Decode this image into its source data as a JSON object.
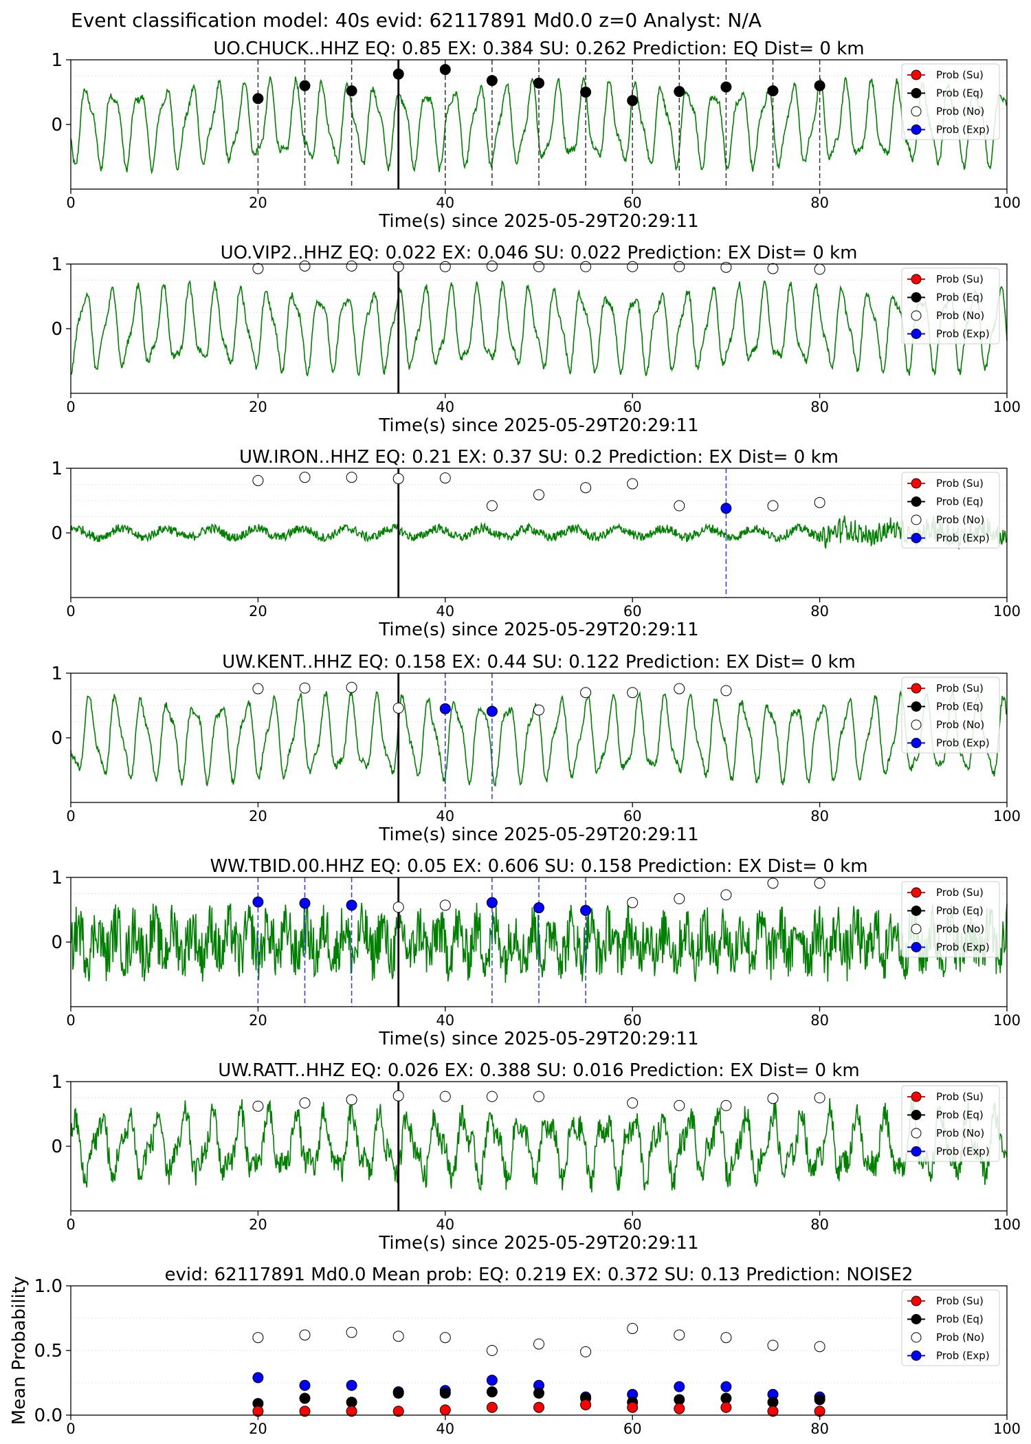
{
  "suptitle": "Event classification model: 40s evid: 62117891 Md0.0 z=0 Analyst: N/A",
  "colors": {
    "trace": "#008000",
    "su": "#ff0000",
    "eq": "#000000",
    "no": "#ffffff",
    "exp": "#0000ff",
    "grid": "#dddddd"
  },
  "legend": [
    "Prob (Su)",
    "Prob (Eq)",
    "Prob (No)",
    "Prob (Exp)"
  ],
  "chart_data": [
    {
      "type": "line",
      "title": "UO.CHUCK..HHZ   EQ: 0.85  EX: 0.384  SU: 0.262   Prediction: EQ    Dist= 0 km",
      "xlabel": "Time(s) since 2025-05-29T20:29:11",
      "xlim": [
        0,
        100
      ],
      "ylim": [
        -1,
        1
      ],
      "xticks": [
        "0",
        "20",
        "40",
        "60",
        "80",
        "100"
      ],
      "yticks": [
        "1",
        "0"
      ],
      "noise": "low",
      "marker_line": 35,
      "dashed_lines": {
        "color": "black",
        "x": [
          20,
          25,
          30,
          40,
          45,
          50,
          55,
          60,
          65,
          70,
          75,
          80
        ]
      },
      "points": [
        {
          "x": 20,
          "y": 0.4,
          "cls": "eq"
        },
        {
          "x": 25,
          "y": 0.6,
          "cls": "eq"
        },
        {
          "x": 30,
          "y": 0.52,
          "cls": "eq"
        },
        {
          "x": 35,
          "y": 0.78,
          "cls": "eq"
        },
        {
          "x": 40,
          "y": 0.85,
          "cls": "eq"
        },
        {
          "x": 45,
          "y": 0.68,
          "cls": "eq"
        },
        {
          "x": 50,
          "y": 0.64,
          "cls": "eq"
        },
        {
          "x": 55,
          "y": 0.5,
          "cls": "eq"
        },
        {
          "x": 60,
          "y": 0.37,
          "cls": "eq"
        },
        {
          "x": 65,
          "y": 0.51,
          "cls": "eq"
        },
        {
          "x": 70,
          "y": 0.58,
          "cls": "eq"
        },
        {
          "x": 75,
          "y": 0.52,
          "cls": "eq"
        },
        {
          "x": 80,
          "y": 0.6,
          "cls": "eq"
        }
      ]
    },
    {
      "type": "line",
      "title": "UO.VIP2..HHZ   EQ: 0.022  EX: 0.046  SU: 0.022   Prediction: EX    Dist= 0 km",
      "xlabel": "Time(s) since 2025-05-29T20:29:11",
      "xlim": [
        0,
        100
      ],
      "ylim": [
        -1,
        1
      ],
      "xticks": [
        "0",
        "20",
        "40",
        "60",
        "80",
        "100"
      ],
      "yticks": [
        "1",
        "0"
      ],
      "noise": "low",
      "marker_line": 35,
      "dashed_lines": {
        "color": "blue",
        "x": []
      },
      "points": [
        {
          "x": 20,
          "y": 0.93,
          "cls": "no"
        },
        {
          "x": 25,
          "y": 0.97,
          "cls": "no"
        },
        {
          "x": 30,
          "y": 0.97,
          "cls": "no"
        },
        {
          "x": 35,
          "y": 0.96,
          "cls": "no"
        },
        {
          "x": 40,
          "y": 0.96,
          "cls": "no"
        },
        {
          "x": 45,
          "y": 0.97,
          "cls": "no"
        },
        {
          "x": 50,
          "y": 0.96,
          "cls": "no"
        },
        {
          "x": 55,
          "y": 0.96,
          "cls": "no"
        },
        {
          "x": 60,
          "y": 0.96,
          "cls": "no"
        },
        {
          "x": 65,
          "y": 0.96,
          "cls": "no"
        },
        {
          "x": 70,
          "y": 0.95,
          "cls": "no"
        },
        {
          "x": 75,
          "y": 0.93,
          "cls": "no"
        },
        {
          "x": 80,
          "y": 0.92,
          "cls": "no"
        }
      ]
    },
    {
      "type": "line",
      "title": "UW.IRON..HHZ   EQ: 0.21  EX: 0.37  SU: 0.2   Prediction: EX    Dist= 0 km",
      "xlabel": "Time(s) since 2025-05-29T20:29:11",
      "xlim": [
        0,
        100
      ],
      "ylim": [
        -1,
        1
      ],
      "xticks": [
        "0",
        "20",
        "40",
        "60",
        "80",
        "100"
      ],
      "yticks": [
        "1",
        "0"
      ],
      "noise": "flat",
      "marker_line": 35,
      "dashed_lines": {
        "color": "blue",
        "x": [
          70
        ]
      },
      "points": [
        {
          "x": 20,
          "y": 0.81,
          "cls": "no"
        },
        {
          "x": 25,
          "y": 0.86,
          "cls": "no"
        },
        {
          "x": 30,
          "y": 0.86,
          "cls": "no"
        },
        {
          "x": 35,
          "y": 0.84,
          "cls": "no"
        },
        {
          "x": 40,
          "y": 0.85,
          "cls": "no"
        },
        {
          "x": 45,
          "y": 0.42,
          "cls": "no"
        },
        {
          "x": 50,
          "y": 0.59,
          "cls": "no"
        },
        {
          "x": 55,
          "y": 0.7,
          "cls": "no"
        },
        {
          "x": 60,
          "y": 0.76,
          "cls": "no"
        },
        {
          "x": 65,
          "y": 0.42,
          "cls": "no"
        },
        {
          "x": 70,
          "y": 0.38,
          "cls": "exp"
        },
        {
          "x": 75,
          "y": 0.42,
          "cls": "no"
        },
        {
          "x": 80,
          "y": 0.47,
          "cls": "no"
        }
      ]
    },
    {
      "type": "line",
      "title": "UW.KENT..HHZ   EQ: 0.158  EX: 0.44  SU: 0.122   Prediction: EX    Dist= 0 km",
      "xlabel": "Time(s) since 2025-05-29T20:29:11",
      "xlim": [
        0,
        100
      ],
      "ylim": [
        -1,
        1
      ],
      "xticks": [
        "0",
        "20",
        "40",
        "60",
        "80",
        "100"
      ],
      "yticks": [
        "1",
        "0"
      ],
      "noise": "low",
      "marker_line": 35,
      "dashed_lines": {
        "color": "blue",
        "x": [
          40,
          45
        ]
      },
      "points": [
        {
          "x": 20,
          "y": 0.76,
          "cls": "no"
        },
        {
          "x": 25,
          "y": 0.77,
          "cls": "no"
        },
        {
          "x": 30,
          "y": 0.78,
          "cls": "no"
        },
        {
          "x": 35,
          "y": 0.46,
          "cls": "no"
        },
        {
          "x": 40,
          "y": 0.45,
          "cls": "exp"
        },
        {
          "x": 45,
          "y": 0.41,
          "cls": "exp"
        },
        {
          "x": 50,
          "y": 0.43,
          "cls": "no"
        },
        {
          "x": 55,
          "y": 0.7,
          "cls": "no"
        },
        {
          "x": 60,
          "y": 0.7,
          "cls": "no"
        },
        {
          "x": 65,
          "y": 0.76,
          "cls": "no"
        },
        {
          "x": 70,
          "y": 0.73,
          "cls": "no"
        }
      ]
    },
    {
      "type": "line",
      "title": "WW.TBID.00.HHZ   EQ: 0.05  EX: 0.606  SU: 0.158   Prediction: EX    Dist= 0 km",
      "xlabel": "Time(s) since 2025-05-29T20:29:11",
      "xlim": [
        0,
        100
      ],
      "ylim": [
        -1,
        1
      ],
      "xticks": [
        "0",
        "20",
        "40",
        "60",
        "80",
        "100"
      ],
      "yticks": [
        "1",
        "0"
      ],
      "noise": "high",
      "marker_line": 35,
      "dashed_lines": {
        "color": "blue",
        "x": [
          20,
          25,
          30,
          45,
          50,
          55
        ]
      },
      "points": [
        {
          "x": 20,
          "y": 0.62,
          "cls": "exp"
        },
        {
          "x": 25,
          "y": 0.6,
          "cls": "exp"
        },
        {
          "x": 30,
          "y": 0.57,
          "cls": "exp"
        },
        {
          "x": 35,
          "y": 0.54,
          "cls": "no"
        },
        {
          "x": 40,
          "y": 0.57,
          "cls": "no"
        },
        {
          "x": 45,
          "y": 0.61,
          "cls": "exp"
        },
        {
          "x": 50,
          "y": 0.53,
          "cls": "exp"
        },
        {
          "x": 55,
          "y": 0.49,
          "cls": "exp"
        },
        {
          "x": 60,
          "y": 0.61,
          "cls": "no"
        },
        {
          "x": 65,
          "y": 0.67,
          "cls": "no"
        },
        {
          "x": 70,
          "y": 0.73,
          "cls": "no"
        },
        {
          "x": 75,
          "y": 0.91,
          "cls": "no"
        },
        {
          "x": 80,
          "y": 0.91,
          "cls": "no"
        }
      ]
    },
    {
      "type": "line",
      "title": "UW.RATT..HHZ   EQ: 0.026  EX: 0.388  SU: 0.016   Prediction: EX    Dist= 0 km",
      "xlabel": "Time(s) since 2025-05-29T20:29:11",
      "xlim": [
        0,
        100
      ],
      "ylim": [
        -1,
        1
      ],
      "xticks": [
        "0",
        "20",
        "40",
        "60",
        "80",
        "100"
      ],
      "yticks": [
        "1",
        "0"
      ],
      "noise": "mid",
      "marker_line": 35,
      "dashed_lines": {
        "color": "blue",
        "x": []
      },
      "points": [
        {
          "x": 20,
          "y": 0.62,
          "cls": "no"
        },
        {
          "x": 25,
          "y": 0.67,
          "cls": "no"
        },
        {
          "x": 30,
          "y": 0.72,
          "cls": "no"
        },
        {
          "x": 35,
          "y": 0.78,
          "cls": "no"
        },
        {
          "x": 40,
          "y": 0.77,
          "cls": "no"
        },
        {
          "x": 45,
          "y": 0.77,
          "cls": "no"
        },
        {
          "x": 50,
          "y": 0.77,
          "cls": "no"
        },
        {
          "x": 60,
          "y": 0.67,
          "cls": "no"
        },
        {
          "x": 65,
          "y": 0.63,
          "cls": "no"
        },
        {
          "x": 70,
          "y": 0.63,
          "cls": "no"
        },
        {
          "x": 75,
          "y": 0.74,
          "cls": "no"
        },
        {
          "x": 80,
          "y": 0.75,
          "cls": "no"
        }
      ]
    },
    {
      "type": "scatter",
      "title": "evid: 62117891  Md0.0   Mean prob:   EQ: 0.219  EX: 0.372  SU: 0.13   Prediction: NOISE2",
      "xlabel": "",
      "ylabel": "Mean Probability",
      "xlim": [
        0,
        100
      ],
      "ylim": [
        0,
        1
      ],
      "xticks": [
        "0",
        "20",
        "40",
        "60",
        "80",
        "100"
      ],
      "yticks": [
        "1.0",
        "0.5",
        "0.0"
      ],
      "series": [
        {
          "name": "Prob (No)",
          "cls": "no",
          "x": [
            20,
            25,
            30,
            35,
            40,
            45,
            50,
            55,
            60,
            65,
            70,
            75,
            80
          ],
          "y": [
            0.6,
            0.62,
            0.64,
            0.61,
            0.6,
            0.5,
            0.55,
            0.49,
            0.67,
            0.62,
            0.6,
            0.54,
            0.53
          ]
        },
        {
          "name": "Prob (Exp)",
          "cls": "exp",
          "x": [
            20,
            25,
            30,
            35,
            40,
            45,
            50,
            55,
            60,
            65,
            70,
            75,
            80
          ],
          "y": [
            0.29,
            0.23,
            0.23,
            0.18,
            0.19,
            0.27,
            0.23,
            0.14,
            0.16,
            0.22,
            0.22,
            0.16,
            0.14
          ]
        },
        {
          "name": "Prob (Eq)",
          "cls": "eq",
          "x": [
            20,
            25,
            30,
            35,
            40,
            45,
            50,
            55,
            60,
            65,
            70,
            75,
            80
          ],
          "y": [
            0.09,
            0.13,
            0.1,
            0.17,
            0.17,
            0.18,
            0.17,
            0.13,
            0.1,
            0.12,
            0.13,
            0.1,
            0.12
          ]
        },
        {
          "name": "Prob (Su)",
          "cls": "su",
          "x": [
            20,
            25,
            30,
            35,
            40,
            45,
            50,
            55,
            60,
            65,
            70,
            75,
            80
          ],
          "y": [
            0.03,
            0.03,
            0.03,
            0.03,
            0.04,
            0.06,
            0.06,
            0.08,
            0.06,
            0.05,
            0.06,
            0.03,
            0.03
          ]
        }
      ]
    }
  ]
}
